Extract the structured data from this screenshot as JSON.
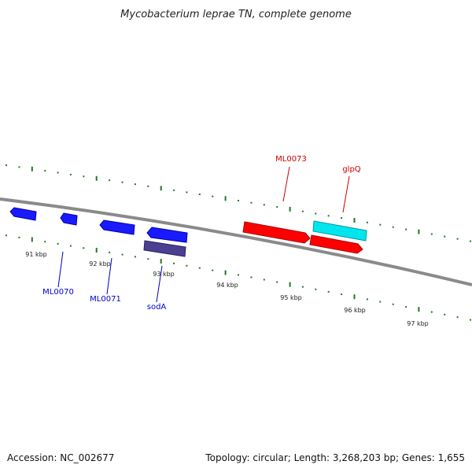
{
  "title": "Mycobacterium leprae TN, complete genome",
  "footer": {
    "accession": "Accession: NC_002677",
    "summary": "Topology: circular; Length: 3,268,203 bp; Genes: 1,655"
  },
  "colors": {
    "backbone": "#8a8a8a",
    "tick": "#1f7a1f",
    "forward_strand_gene": "#ff0000",
    "forward_strand_alt": "#00e5ee",
    "reverse_strand_gene": "#1a1aff",
    "reverse_strand_alt": "#4b3f8f",
    "forward_label": "#cc0000",
    "reverse_label": "#0000cc"
  },
  "scale": {
    "unit": "kbp",
    "tick_labels": [
      "91 kbp",
      "92 kbp",
      "93 kbp",
      "94 kbp",
      "95 kbp",
      "96 kbp",
      "97 kbp"
    ]
  },
  "genes": {
    "reverse_labels": [
      "ML0070",
      "ML0071",
      "sodA"
    ],
    "forward_labels": [
      "ML0073",
      "glpQ"
    ]
  }
}
